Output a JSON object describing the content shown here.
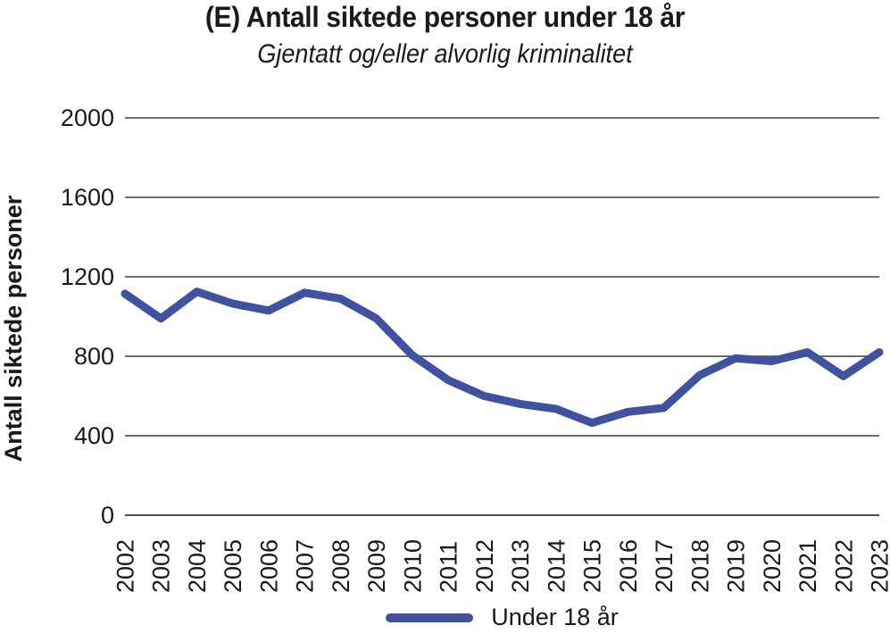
{
  "chart_data": {
    "type": "line",
    "title": "(E) Antall siktede personer under 18 år",
    "subtitle": "Gjentatt og/eller alvorlig kriminalitet",
    "ylabel": "Antall siktede personer",
    "xlabel": "",
    "categories": [
      "2002",
      "2003",
      "2004",
      "2005",
      "2006",
      "2007",
      "2008",
      "2009",
      "2010",
      "2011",
      "2012",
      "2013",
      "2014",
      "2015",
      "2016",
      "2017",
      "2018",
      "2019",
      "2020",
      "2021",
      "2022",
      "2023"
    ],
    "series": [
      {
        "name": "Under 18 år",
        "color": "#3F51A3",
        "values": [
          1115,
          990,
          1125,
          1065,
          1030,
          1120,
          1090,
          990,
          805,
          680,
          600,
          560,
          535,
          465,
          520,
          540,
          705,
          790,
          775,
          820,
          700,
          820
        ]
      }
    ],
    "ylim": [
      0,
      2000
    ],
    "yticks": [
      0,
      400,
      800,
      1200,
      1600,
      2000
    ],
    "grid": true,
    "legend_position": "bottom"
  },
  "colors": {
    "background": "#ffffff",
    "text": "#1a1a1a",
    "grid": "#3d3d3d",
    "axis": "#4d4d4d",
    "accent": "#3F51A3"
  }
}
